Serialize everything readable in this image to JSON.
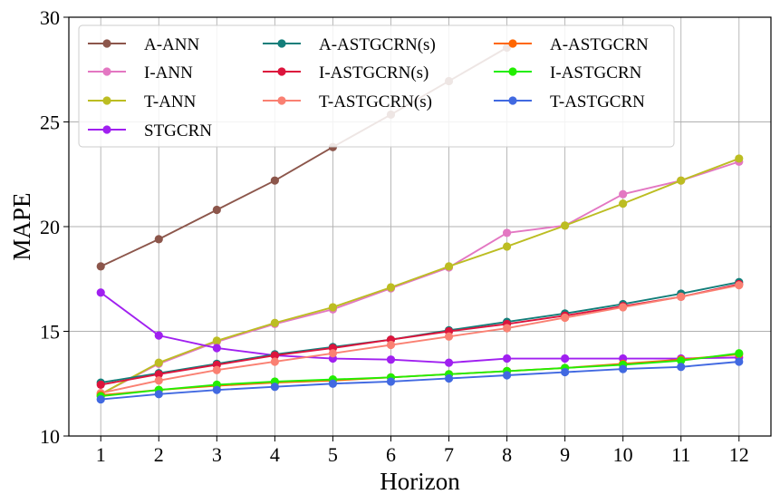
{
  "chart_data": {
    "type": "line",
    "title": "",
    "xlabel": "Horizon",
    "ylabel": "MAPE",
    "x": [
      1,
      2,
      3,
      4,
      5,
      6,
      7,
      8,
      9,
      10,
      11,
      12
    ],
    "xlim": [
      0.45,
      12.55
    ],
    "ylim": [
      10,
      30
    ],
    "yticks": [
      10,
      15,
      20,
      25,
      30
    ],
    "grid": true,
    "legend_position": "top-left",
    "legend_columns": 3,
    "series": [
      {
        "name": "A-ANN",
        "color": "#8c564b",
        "values": [
          18.1,
          19.4,
          20.8,
          22.2,
          23.8,
          25.35,
          26.95,
          28.55,
          null,
          null,
          null,
          null
        ]
      },
      {
        "name": "I-ANN",
        "color": "#e377c2",
        "values": [
          12.0,
          13.45,
          14.5,
          15.35,
          16.05,
          17.05,
          18.05,
          19.7,
          20.05,
          21.55,
          22.2,
          23.1
        ]
      },
      {
        "name": "T-ANN",
        "color": "#bcbd22",
        "values": [
          12.0,
          13.5,
          14.55,
          15.4,
          16.15,
          17.1,
          18.1,
          19.05,
          20.05,
          21.1,
          22.2,
          23.25
        ]
      },
      {
        "name": "STGCRN",
        "color": "#a020f0",
        "values": [
          16.85,
          14.8,
          14.2,
          13.85,
          13.7,
          13.65,
          13.5,
          13.7,
          13.7,
          13.7,
          13.7,
          13.75
        ]
      },
      {
        "name": "A-ASTGCRN(s)",
        "color": "#137e7a",
        "values": [
          12.55,
          13.0,
          13.45,
          13.9,
          14.25,
          14.6,
          15.05,
          15.45,
          15.85,
          16.3,
          16.8,
          17.35
        ]
      },
      {
        "name": "I-ASTGCRN(s)",
        "color": "#dc143c",
        "values": [
          12.45,
          12.95,
          13.4,
          13.85,
          14.2,
          14.6,
          15.0,
          15.35,
          15.75,
          16.2,
          16.65,
          17.25
        ]
      },
      {
        "name": "T-ASTGCRN(s)",
        "color": "#fa8072",
        "values": [
          12.05,
          12.65,
          13.15,
          13.55,
          13.95,
          14.35,
          14.75,
          15.15,
          15.65,
          16.15,
          16.65,
          17.2
        ]
      },
      {
        "name": "A-ASTGCRN",
        "color": "#ff6600",
        "values": [
          11.95,
          12.2,
          12.4,
          12.55,
          12.65,
          12.8,
          12.95,
          13.1,
          13.25,
          13.45,
          13.65,
          13.9
        ]
      },
      {
        "name": "I-ASTGCRN",
        "color": "#22ee00",
        "values": [
          11.9,
          12.2,
          12.45,
          12.6,
          12.7,
          12.8,
          12.95,
          13.1,
          13.25,
          13.4,
          13.6,
          13.95
        ]
      },
      {
        "name": "T-ASTGCRN",
        "color": "#4169e1",
        "values": [
          11.75,
          12.0,
          12.2,
          12.35,
          12.5,
          12.6,
          12.75,
          12.9,
          13.05,
          13.2,
          13.3,
          13.55
        ]
      }
    ]
  }
}
